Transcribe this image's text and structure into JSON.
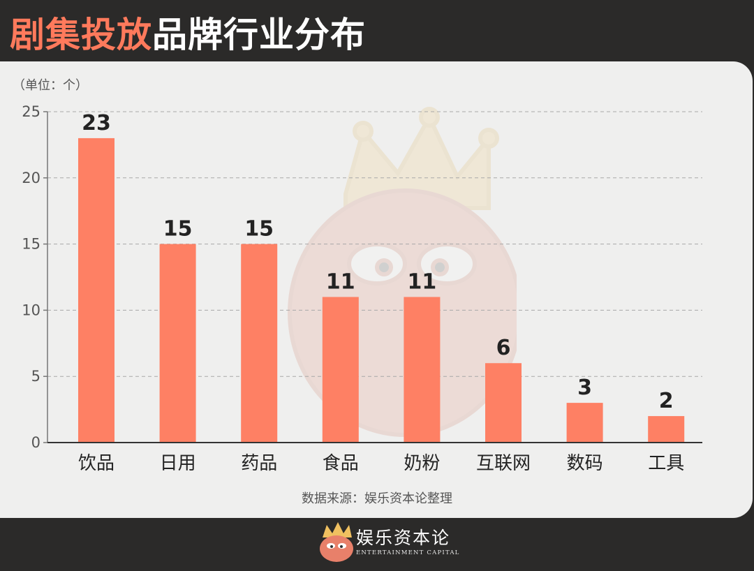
{
  "header": {
    "title_accent": "剧集投放",
    "title_rest": "品牌行业分布"
  },
  "colors": {
    "bar": "#fe8064",
    "accent": "#ff7a5c",
    "background": "#2b2a29",
    "card": "#efefee"
  },
  "chart_data": {
    "type": "bar",
    "categories": [
      "饮品",
      "日用",
      "药品",
      "食品",
      "奶粉",
      "互联网",
      "数码",
      "工具"
    ],
    "values": [
      23,
      15,
      15,
      11,
      11,
      6,
      3,
      2
    ],
    "title": "剧集投放品牌行业分布",
    "unit_label": "（单位：个）",
    "ylim": [
      0,
      25
    ],
    "yticks": [
      0,
      5,
      10,
      15,
      20,
      25
    ],
    "grid": true,
    "source": "数据来源：娱乐资本论整理"
  },
  "footer": {
    "brand_cn": "娱乐资本论",
    "brand_en": "ENTERTAINMENT CAPITAL"
  }
}
